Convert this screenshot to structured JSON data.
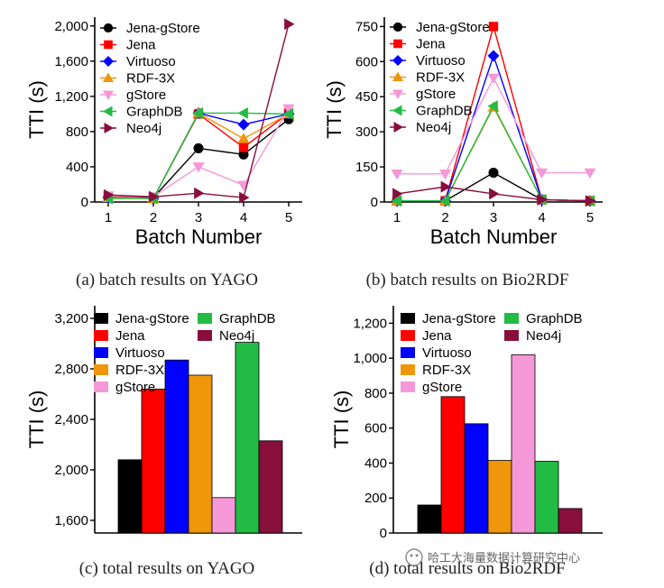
{
  "captions": {
    "a": "(a) batch results on YAGO",
    "b": "(b) batch results on Bio2RDF",
    "c": "(c) total results on YAGO",
    "d": "(d) total results on Bio2RDF"
  },
  "watermark": "哈工大海量数据计算研究中心",
  "series_styles": {
    "Jena-gStore": {
      "color": "#000000",
      "marker": "circle"
    },
    "Jena": {
      "color": "#ff0000",
      "marker": "square"
    },
    "Virtuoso": {
      "color": "#0000ff",
      "marker": "diamond"
    },
    "RDF-3X": {
      "color": "#f0960a",
      "marker": "triangle-up"
    },
    "gStore": {
      "color": "#f598d8",
      "marker": "triangle-down"
    },
    "GraphDB": {
      "color": "#22bb44",
      "marker": "triangle-left"
    },
    "Neo4j": {
      "color": "#880e3c",
      "marker": "triangle-right"
    }
  },
  "chart_data": [
    {
      "id": "a",
      "type": "line",
      "title": "batch results on YAGO",
      "xlabel": "Batch Number",
      "ylabel": "TTI (s)",
      "x": [
        1,
        2,
        3,
        4,
        5
      ],
      "xticks": [
        "1",
        "2",
        "3",
        "4",
        "5"
      ],
      "ylim": [
        0,
        2100
      ],
      "yticks": [
        0,
        400,
        800,
        1200,
        1600,
        2000
      ],
      "ytick_labels": [
        "0",
        "400",
        "800",
        "1,200",
        "1,600",
        "2,000"
      ],
      "series": [
        {
          "name": "Jena-gStore",
          "values": [
            60,
            50,
            610,
            540,
            940
          ]
        },
        {
          "name": "Jena",
          "values": [
            60,
            40,
            1000,
            620,
            1010
          ]
        },
        {
          "name": "Virtuoso",
          "values": [
            50,
            40,
            1010,
            880,
            1000
          ]
        },
        {
          "name": "RDF-3X",
          "values": [
            50,
            40,
            1010,
            720,
            1000
          ]
        },
        {
          "name": "gStore",
          "values": [
            70,
            60,
            400,
            190,
            1060
          ]
        },
        {
          "name": "GraphDB",
          "values": [
            40,
            40,
            1010,
            1010,
            1000
          ]
        },
        {
          "name": "Neo4j",
          "values": [
            80,
            60,
            100,
            50,
            2020
          ]
        }
      ]
    },
    {
      "id": "b",
      "type": "line",
      "title": "batch results on Bio2RDF",
      "xlabel": "Batch Number",
      "ylabel": "TTI (s)",
      "x": [
        1,
        2,
        3,
        4,
        5
      ],
      "xticks": [
        "1",
        "2",
        "3",
        "4",
        "5"
      ],
      "ylim": [
        0,
        790
      ],
      "yticks": [
        0,
        150,
        300,
        450,
        600,
        750
      ],
      "ytick_labels": [
        "0",
        "150",
        "300",
        "450",
        "600",
        "750"
      ],
      "series": [
        {
          "name": "Jena-gStore",
          "values": [
            5,
            5,
            125,
            10,
            5
          ]
        },
        {
          "name": "Jena",
          "values": [
            5,
            5,
            750,
            10,
            5
          ]
        },
        {
          "name": "Virtuoso",
          "values": [
            5,
            5,
            625,
            10,
            5
          ]
        },
        {
          "name": "RDF-3X",
          "values": [
            5,
            5,
            405,
            10,
            5
          ]
        },
        {
          "name": "gStore",
          "values": [
            120,
            120,
            530,
            125,
            125
          ]
        },
        {
          "name": "GraphDB",
          "values": [
            5,
            5,
            410,
            10,
            5
          ]
        },
        {
          "name": "Neo4j",
          "values": [
            35,
            65,
            35,
            10,
            5
          ]
        }
      ]
    },
    {
      "id": "c",
      "type": "bar",
      "title": "total results on YAGO",
      "ylabel": "TTI (s)",
      "categories": [
        "Jena-gStore",
        "Jena",
        "Virtuoso",
        "RDF-3X",
        "gStore",
        "GraphDB",
        "Neo4j"
      ],
      "values": [
        2080,
        2640,
        2870,
        2750,
        1780,
        3010,
        2230
      ],
      "ylim": [
        1500,
        3300
      ],
      "yticks": [
        1600,
        2000,
        2400,
        2800,
        3200
      ],
      "ytick_labels": [
        "1,600",
        "2,000",
        "2,400",
        "2,800",
        "3,200"
      ]
    },
    {
      "id": "d",
      "type": "bar",
      "title": "total results on Bio2RDF",
      "ylabel": "TTI (s)",
      "categories": [
        "Jena-gStore",
        "Jena",
        "Virtuoso",
        "RDF-3X",
        "gStore",
        "GraphDB",
        "Neo4j"
      ],
      "values": [
        160,
        780,
        625,
        415,
        1020,
        410,
        140
      ],
      "ylim": [
        0,
        1300
      ],
      "yticks": [
        0,
        200,
        400,
        600,
        800,
        1000,
        1200
      ],
      "ytick_labels": [
        "0",
        "200",
        "400",
        "600",
        "800",
        "1,000",
        "1,200"
      ]
    }
  ]
}
